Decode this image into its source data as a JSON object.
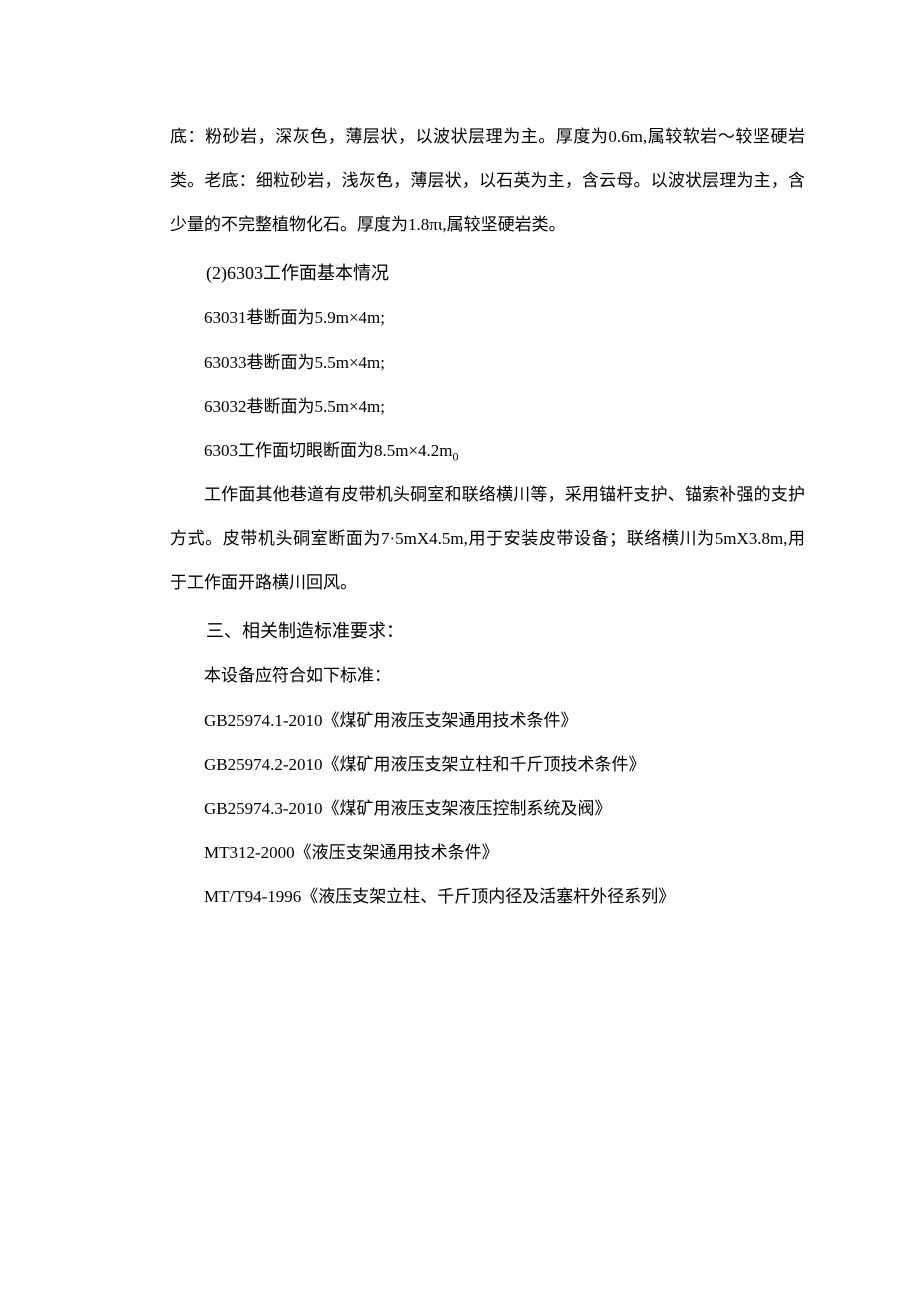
{
  "para1": "底：粉砂岩，深灰色，薄层状，以波状层理为主。厚度为0.6m,属较软岩〜较坚硬岩类。老底：细粒砂岩，浅灰色，薄层状，以石英为主，含云母。以波状层理为主，含少量的不完整植物化石。厚度为1.8πι,属较坚硬岩类。",
  "header1": "(2)6303工作面基本情况",
  "line1": "63031巷断面为5.9m×4m;",
  "line2": "63033巷断面为5.5m×4m;",
  "line3": "63032巷断面为5.5m×4m;",
  "line4_a": "6303工作面切眼断面为8.5m×4.2m",
  "line4_b": "0",
  "para2": "工作面其他巷道有皮带机头硐室和联络横川等，采用锚杆支护、锚索补强的支护方式。皮带机头硐室断面为7·5mX4.5m,用于安装皮带设备；联络横川为5mX3.8m,用于工作面开路横川回风。",
  "header2": "三、相关制造标准要求：",
  "line5": "本设备应符合如下标准：",
  "std1": "GB25974.1-2010《煤矿用液压支架通用技术条件》",
  "std2": "GB25974.2-2010《煤矿用液压支架立柱和千斤顶技术条件》",
  "std3": "GB25974.3-2010《煤矿用液压支架液压控制系统及阀》",
  "std4": "MT312-2000《液压支架通用技术条件》",
  "std5": "MT/T94-1996《液压支架立柱、千斤顶内径及活塞杆外径系列》"
}
